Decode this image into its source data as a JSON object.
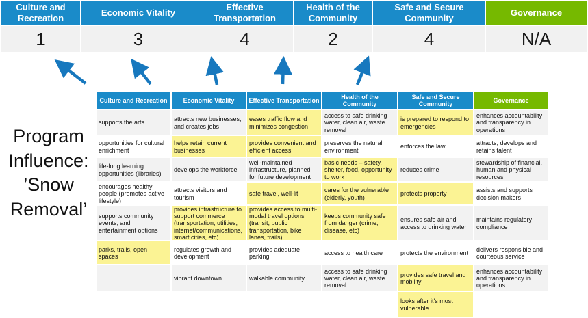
{
  "title": "Program Influence: ’Snow Removal’",
  "colors": {
    "header_blue": "#1A8BC9",
    "header_green": "#76B900",
    "highlight_yellow": "#FBF394",
    "row_gray": "#F2F2F2",
    "row_white": "#FFFFFF",
    "score_bg": "#F1F1F1",
    "arrow_blue": "#1778BE"
  },
  "priorities": [
    {
      "label": "Culture and Recreation",
      "score": "1",
      "color": "header_blue"
    },
    {
      "label": "Economic Vitality",
      "score": "3",
      "color": "header_blue"
    },
    {
      "label": "Effective Transportation",
      "score": "4",
      "color": "header_blue"
    },
    {
      "label": "Health of the Community",
      "score": "2",
      "color": "header_blue"
    },
    {
      "label": "Safe and Secure Community",
      "score": "4",
      "color": "header_blue"
    },
    {
      "label": "Governance",
      "score": "N/A",
      "color": "header_green"
    }
  ],
  "matrix": {
    "headers": [
      {
        "label": "Culture and Recreation",
        "color": "header_blue"
      },
      {
        "label": "Economic Vitality",
        "color": "header_blue"
      },
      {
        "label": "Effective Transportation",
        "color": "header_blue"
      },
      {
        "label": "Health of the Community",
        "color": "header_blue"
      },
      {
        "label": "Safe and Secure Community",
        "color": "header_blue"
      },
      {
        "label": "Governance",
        "color": "header_green"
      }
    ],
    "rows": [
      [
        {
          "text": "supports the arts",
          "highlight": false
        },
        {
          "text": "attracts new businesses, and creates jobs",
          "highlight": false
        },
        {
          "text": "eases traffic flow and minimizes congestion",
          "highlight": true
        },
        {
          "text": "access to safe drinking water, clean air, waste removal",
          "highlight": false
        },
        {
          "text": "is prepared to respond to emergencies",
          "highlight": true
        },
        {
          "text": "enhances accountability and transparency in operations",
          "highlight": false
        }
      ],
      [
        {
          "text": "opportunities for cultural enrichment",
          "highlight": false
        },
        {
          "text": "helps retain current businesses",
          "highlight": true
        },
        {
          "text": "provides convenient and efficient access",
          "highlight": true
        },
        {
          "text": "preserves the natural environment",
          "highlight": false
        },
        {
          "text": "enforces the law",
          "highlight": false
        },
        {
          "text": "attracts, develops and retains talent",
          "highlight": false
        }
      ],
      [
        {
          "text": "life-long learning opportunities (libraries)",
          "highlight": false
        },
        {
          "text": "develops the workforce",
          "highlight": false
        },
        {
          "text": "well-maintained infrastructure, planned for future development",
          "highlight": false
        },
        {
          "text": "basic needs – safety, shelter, food, opportunity to work",
          "highlight": true
        },
        {
          "text": "reduces crime",
          "highlight": false
        },
        {
          "text": "stewardship of financial, human and physical resources",
          "highlight": false
        }
      ],
      [
        {
          "text": "encourages healthy people (promotes active lifestyle)",
          "highlight": false
        },
        {
          "text": "attracts visitors and tourism",
          "highlight": false
        },
        {
          "text": "safe travel, well-lit",
          "highlight": true
        },
        {
          "text": "cares for the vulnerable (elderly, youth)",
          "highlight": true
        },
        {
          "text": "protects property",
          "highlight": true
        },
        {
          "text": "assists and supports decision makers",
          "highlight": false
        }
      ],
      [
        {
          "text": "supports community events, and entertainment options",
          "highlight": false
        },
        {
          "text": "provides infrastructure to support commerce (transportation, utilities, internet/communications, smart cities, etc)",
          "highlight": true
        },
        {
          "text": "provides access to multi-modal travel options (transit, public transportation, bike lanes, trails)",
          "highlight": true
        },
        {
          "text": "keeps community safe from danger (crime, disease, etc)",
          "highlight": true
        },
        {
          "text": "ensures safe air and access to drinking water",
          "highlight": false
        },
        {
          "text": "maintains regulatory compliance",
          "highlight": false
        }
      ],
      [
        {
          "text": "parks, trails, open spaces",
          "highlight": true
        },
        {
          "text": "regulates growth and development",
          "highlight": false
        },
        {
          "text": "provides adequate parking",
          "highlight": false
        },
        {
          "text": "access to health care",
          "highlight": false
        },
        {
          "text": "protects the environment",
          "highlight": false
        },
        {
          "text": "delivers responsible and courteous service",
          "highlight": false
        }
      ],
      [
        {
          "text": "",
          "highlight": false
        },
        {
          "text": "vibrant downtown",
          "highlight": false
        },
        {
          "text": "walkable community",
          "highlight": false
        },
        {
          "text": "access to safe drinking water, clean air, waste removal",
          "highlight": false
        },
        {
          "text": "provides safe travel and mobility",
          "highlight": true
        },
        {
          "text": "enhances accountability and transparency in operations",
          "highlight": false
        }
      ],
      [
        {
          "text": "",
          "highlight": false
        },
        {
          "text": "",
          "highlight": false
        },
        {
          "text": "",
          "highlight": false
        },
        {
          "text": "",
          "highlight": false
        },
        {
          "text": "looks after it's most vulnerable",
          "highlight": true
        },
        {
          "text": "",
          "highlight": false
        }
      ]
    ]
  }
}
